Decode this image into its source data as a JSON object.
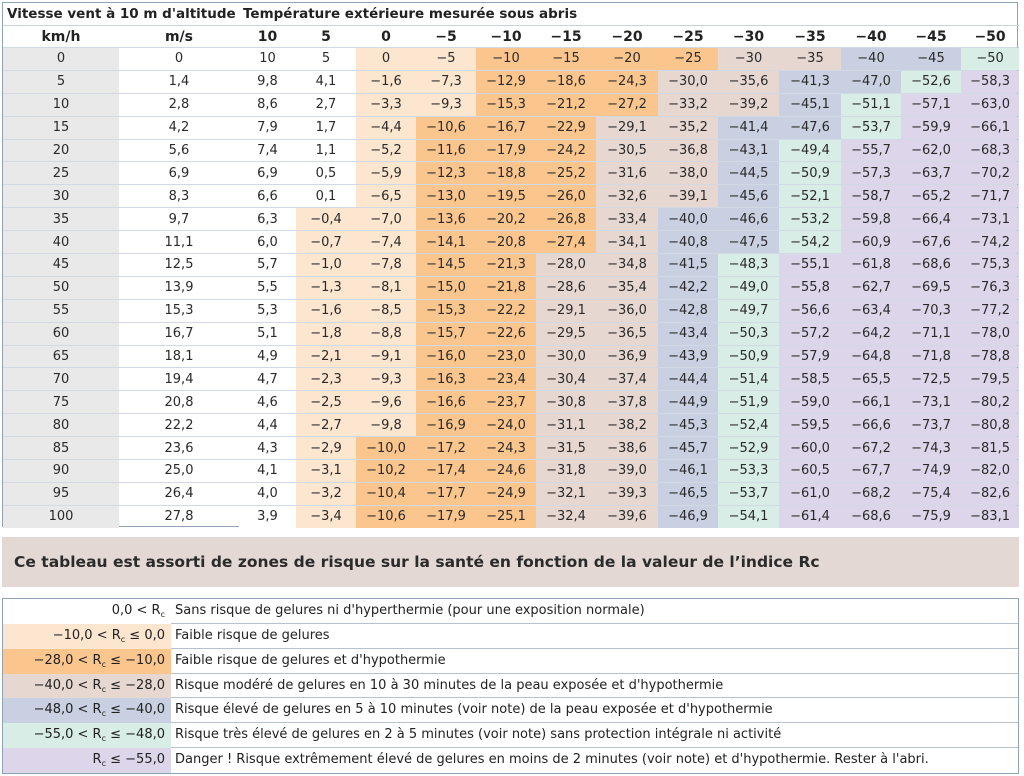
{
  "table": {
    "group_header_wind": "Vitesse vent à 10 m d'altitude",
    "group_header_temp": "Température extérieure mesurée sous abris",
    "col_kmh": "km/h",
    "col_ms": "m/s",
    "temp_columns": [
      "10",
      "5",
      "0",
      "−5",
      "−10",
      "−15",
      "−20",
      "−25",
      "−30",
      "−35",
      "−40",
      "−45",
      "−50"
    ],
    "rows": [
      {
        "kmh": "0",
        "ms": "0",
        "values": [
          "10",
          "5",
          "0",
          "−5",
          "−10",
          "−15",
          "−20",
          "−25",
          "−30",
          "−35",
          "−40",
          "−45",
          "−50"
        ]
      },
      {
        "kmh": "5",
        "ms": "1,4",
        "values": [
          "9,8",
          "4,1",
          "−1,6",
          "−7,3",
          "−12,9",
          "−18,6",
          "−24,3",
          "−30,0",
          "−35,6",
          "−41,3",
          "−47,0",
          "−52,6",
          "−58,3"
        ]
      },
      {
        "kmh": "10",
        "ms": "2,8",
        "values": [
          "8,6",
          "2,7",
          "−3,3",
          "−9,3",
          "−15,3",
          "−21,2",
          "−27,2",
          "−33,2",
          "−39,2",
          "−45,1",
          "−51,1",
          "−57,1",
          "−63,0"
        ]
      },
      {
        "kmh": "15",
        "ms": "4,2",
        "values": [
          "7,9",
          "1,7",
          "−4,4",
          "−10,6",
          "−16,7",
          "−22,9",
          "−29,1",
          "−35,2",
          "−41,4",
          "−47,6",
          "−53,7",
          "−59,9",
          "−66,1"
        ]
      },
      {
        "kmh": "20",
        "ms": "5,6",
        "values": [
          "7,4",
          "1,1",
          "−5,2",
          "−11,6",
          "−17,9",
          "−24,2",
          "−30,5",
          "−36,8",
          "−43,1",
          "−49,4",
          "−55,7",
          "−62,0",
          "−68,3"
        ]
      },
      {
        "kmh": "25",
        "ms": "6,9",
        "values": [
          "6,9",
          "0,5",
          "−5,9",
          "−12,3",
          "−18,8",
          "−25,2",
          "−31,6",
          "−38,0",
          "−44,5",
          "−50,9",
          "−57,3",
          "−63,7",
          "−70,2"
        ]
      },
      {
        "kmh": "30",
        "ms": "8,3",
        "values": [
          "6,6",
          "0,1",
          "−6,5",
          "−13,0",
          "−19,5",
          "−26,0",
          "−32,6",
          "−39,1",
          "−45,6",
          "−52,1",
          "−58,7",
          "−65,2",
          "−71,7"
        ]
      },
      {
        "kmh": "35",
        "ms": "9,7",
        "values": [
          "6,3",
          "−0,4",
          "−7,0",
          "−13,6",
          "−20,2",
          "−26,8",
          "−33,4",
          "−40,0",
          "−46,6",
          "−53,2",
          "−59,8",
          "−66,4",
          "−73,1"
        ]
      },
      {
        "kmh": "40",
        "ms": "11,1",
        "values": [
          "6,0",
          "−0,7",
          "−7,4",
          "−14,1",
          "−20,8",
          "−27,4",
          "−34,1",
          "−40,8",
          "−47,5",
          "−54,2",
          "−60,9",
          "−67,6",
          "−74,2"
        ]
      },
      {
        "kmh": "45",
        "ms": "12,5",
        "values": [
          "5,7",
          "−1,0",
          "−7,8",
          "−14,5",
          "−21,3",
          "−28,0",
          "−34,8",
          "−41,5",
          "−48,3",
          "−55,1",
          "−61,8",
          "−68,6",
          "−75,3"
        ]
      },
      {
        "kmh": "50",
        "ms": "13,9",
        "values": [
          "5,5",
          "−1,3",
          "−8,1",
          "−15,0",
          "−21,8",
          "−28,6",
          "−35,4",
          "−42,2",
          "−49,0",
          "−55,8",
          "−62,7",
          "−69,5",
          "−76,3"
        ]
      },
      {
        "kmh": "55",
        "ms": "15,3",
        "values": [
          "5,3",
          "−1,6",
          "−8,5",
          "−15,3",
          "−22,2",
          "−29,1",
          "−36,0",
          "−42,8",
          "−49,7",
          "−56,6",
          "−63,4",
          "−70,3",
          "−77,2"
        ]
      },
      {
        "kmh": "60",
        "ms": "16,7",
        "values": [
          "5,1",
          "−1,8",
          "−8,8",
          "−15,7",
          "−22,6",
          "−29,5",
          "−36,5",
          "−43,4",
          "−50,3",
          "−57,2",
          "−64,2",
          "−71,1",
          "−78,0"
        ]
      },
      {
        "kmh": "65",
        "ms": "18,1",
        "values": [
          "4,9",
          "−2,1",
          "−9,1",
          "−16,0",
          "−23,0",
          "−30,0",
          "−36,9",
          "−43,9",
          "−50,9",
          "−57,9",
          "−64,8",
          "−71,8",
          "−78,8"
        ]
      },
      {
        "kmh": "70",
        "ms": "19,4",
        "values": [
          "4,7",
          "−2,3",
          "−9,3",
          "−16,3",
          "−23,4",
          "−30,4",
          "−37,4",
          "−44,4",
          "−51,4",
          "−58,5",
          "−65,5",
          "−72,5",
          "−79,5"
        ]
      },
      {
        "kmh": "75",
        "ms": "20,8",
        "values": [
          "4,6",
          "−2,5",
          "−9,6",
          "−16,6",
          "−23,7",
          "−30,8",
          "−37,8",
          "−44,9",
          "−51,9",
          "−59,0",
          "−66,1",
          "−73,1",
          "−80,2"
        ]
      },
      {
        "kmh": "80",
        "ms": "22,2",
        "values": [
          "4,4",
          "−2,7",
          "−9,8",
          "−16,9",
          "−24,0",
          "−31,1",
          "−38,2",
          "−45,3",
          "−52,4",
          "−59,5",
          "−66,6",
          "−73,7",
          "−80,8"
        ]
      },
      {
        "kmh": "85",
        "ms": "23,6",
        "values": [
          "4,3",
          "−2,9",
          "−10,0",
          "−17,2",
          "−24,3",
          "−31,5",
          "−38,6",
          "−45,7",
          "−52,9",
          "−60,0",
          "−67,2",
          "−74,3",
          "−81,5"
        ]
      },
      {
        "kmh": "90",
        "ms": "25,0",
        "values": [
          "4,1",
          "−3,1",
          "−10,2",
          "−17,4",
          "−24,6",
          "−31,8",
          "−39,0",
          "−46,1",
          "−53,3",
          "−60,5",
          "−67,7",
          "−74,9",
          "−82,0"
        ]
      },
      {
        "kmh": "95",
        "ms": "26,4",
        "values": [
          "4,0",
          "−3,2",
          "−10,4",
          "−17,7",
          "−24,9",
          "−32,1",
          "−39,3",
          "−46,5",
          "−53,7",
          "−61,0",
          "−68,2",
          "−75,4",
          "−82,6"
        ]
      },
      {
        "kmh": "100",
        "ms": "27,8",
        "values": [
          "3,9",
          "−3,4",
          "−10,6",
          "−17,9",
          "−25,1",
          "−32,4",
          "−39,6",
          "−46,9",
          "−54,1",
          "−61,4",
          "−68,6",
          "−75,9",
          "−83,1"
        ]
      }
    ]
  },
  "banner": {
    "text": "Ce tableau est assorti de zones de risque sur la santé en fonction de la valeur de l’indice Rc"
  },
  "legend": {
    "items": [
      {
        "range_pre": "0,0 < R",
        "range_sub": "c",
        "range_post": "",
        "description": "Sans risque de gelures ni d'hyperthermie (pour une exposition normale)",
        "color": "#ffffff"
      },
      {
        "range_pre": "−10,0 < R",
        "range_sub": "c",
        "range_post": " ≤ 0,0",
        "description": "Faible risque de gelures",
        "color": "#fde6cf"
      },
      {
        "range_pre": "−28,0 < R",
        "range_sub": "c",
        "range_post": " ≤ −10,0",
        "description": "Faible risque de gelures et d'hypothermie",
        "color": "#fbc68e"
      },
      {
        "range_pre": "−40,0 < R",
        "range_sub": "c",
        "range_post": " ≤ −28,0",
        "description": "Risque modéré de gelures en 10 à 30 minutes de la peau exposée et d'hypothermie",
        "color": "#e7d7d1"
      },
      {
        "range_pre": "−48,0 < R",
        "range_sub": "c",
        "range_post": " ≤ −40,0",
        "description": "Risque élevé de gelures en 5 à 10 minutes (voir note) de la peau exposée et d'hypothermie",
        "color": "#c8d0e1"
      },
      {
        "range_pre": "−55,0 < R",
        "range_sub": "c",
        "range_post": " ≤ −48,0",
        "description": "Risque très élevé de gelures en 2 à 5 minutes (voir note) sans protection intégrale ni activité",
        "color": "#d8ede6"
      },
      {
        "range_pre": "R",
        "range_sub": "c",
        "range_post": " ≤ −55,0",
        "description": "Danger ! Risque extrêmement élevé de gelures en moins de 2 minutes (voir note) et d'hypothermie. Rester à l'abri.",
        "color": "#ddd6eb"
      }
    ]
  }
}
